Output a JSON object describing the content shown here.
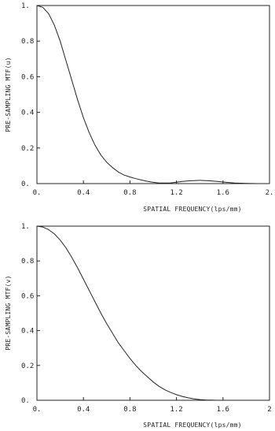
{
  "chart_data": [
    {
      "type": "line",
      "title": "",
      "xlabel": "SPATIAL FREQUENCY(lps/mm)",
      "ylabel": "PRE-SAMPLING MTF(u)",
      "xlim": [
        0,
        2
      ],
      "ylim": [
        0,
        1
      ],
      "grid": false,
      "xticks": [
        {
          "value": 0,
          "label": "0."
        },
        {
          "value": 0.4,
          "label": "0.4"
        },
        {
          "value": 0.8,
          "label": "0.8"
        },
        {
          "value": 1.2,
          "label": "1.2"
        },
        {
          "value": 1.6,
          "label": "1.6"
        },
        {
          "value": 2,
          "label": "2."
        }
      ],
      "yticks": [
        {
          "value": 0,
          "label": "0."
        },
        {
          "value": 0.2,
          "label": "0.2"
        },
        {
          "value": 0.4,
          "label": "0.4"
        },
        {
          "value": 0.6,
          "label": "0.6"
        },
        {
          "value": 0.8,
          "label": "0.8"
        },
        {
          "value": 1,
          "label": "1."
        }
      ],
      "series": [
        {
          "x": [
            0,
            0.05,
            0.1,
            0.15,
            0.2,
            0.25,
            0.3,
            0.35,
            0.4,
            0.45,
            0.5,
            0.55,
            0.6,
            0.65,
            0.7,
            0.75,
            0.8,
            0.85,
            0.9,
            0.95,
            1.0,
            1.05,
            1.1,
            1.15,
            1.2,
            1.25,
            1.3,
            1.35,
            1.4,
            1.45,
            1.5,
            1.55,
            1.6,
            1.65,
            1.7,
            1.8,
            1.9,
            2.0
          ],
          "y": [
            1.0,
            0.99,
            0.955,
            0.89,
            0.8,
            0.69,
            0.58,
            0.47,
            0.37,
            0.285,
            0.215,
            0.16,
            0.12,
            0.09,
            0.065,
            0.048,
            0.037,
            0.028,
            0.02,
            0.013,
            0.007,
            0.003,
            0.003,
            0.004,
            0.008,
            0.012,
            0.015,
            0.017,
            0.018,
            0.017,
            0.015,
            0.012,
            0.009,
            0.006,
            0.003,
            0.001,
            0.0,
            0.0
          ]
        }
      ]
    },
    {
      "type": "line",
      "title": "",
      "xlabel": "SPATIAL FREQUENCY(lps/mm)",
      "ylabel": "PRE-SAMPLING MTF(v)",
      "xlim": [
        0,
        2
      ],
      "ylim": [
        0,
        1
      ],
      "grid": false,
      "xticks": [
        {
          "value": 0,
          "label": "0."
        },
        {
          "value": 0.4,
          "label": "0.4"
        },
        {
          "value": 0.8,
          "label": "0.8"
        },
        {
          "value": 1.2,
          "label": "1.2"
        },
        {
          "value": 1.6,
          "label": "1.6"
        },
        {
          "value": 2,
          "label": "2"
        }
      ],
      "yticks": [
        {
          "value": 0,
          "label": "0."
        },
        {
          "value": 0.2,
          "label": "0.2"
        },
        {
          "value": 0.4,
          "label": "0.4"
        },
        {
          "value": 0.6,
          "label": "0.6"
        },
        {
          "value": 0.8,
          "label": "0.8"
        },
        {
          "value": 1,
          "label": "1."
        }
      ],
      "series": [
        {
          "x": [
            0,
            0.05,
            0.1,
            0.15,
            0.2,
            0.25,
            0.3,
            0.35,
            0.4,
            0.45,
            0.5,
            0.55,
            0.6,
            0.65,
            0.7,
            0.75,
            0.8,
            0.85,
            0.9,
            0.95,
            1.0,
            1.05,
            1.1,
            1.15,
            1.2,
            1.25,
            1.3,
            1.35,
            1.4,
            1.45,
            1.5,
            1.55,
            1.6,
            1.65,
            1.7
          ],
          "y": [
            1.0,
            0.995,
            0.98,
            0.955,
            0.92,
            0.875,
            0.82,
            0.76,
            0.695,
            0.63,
            0.565,
            0.5,
            0.44,
            0.385,
            0.33,
            0.285,
            0.24,
            0.2,
            0.165,
            0.135,
            0.105,
            0.08,
            0.06,
            0.045,
            0.032,
            0.022,
            0.014,
            0.008,
            0.004,
            0.002,
            0.001,
            0.0,
            0.0,
            0.0,
            0.0
          ]
        }
      ]
    }
  ]
}
